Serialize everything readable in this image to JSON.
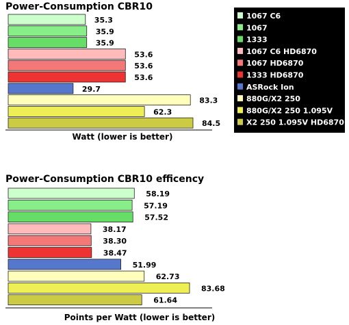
{
  "chart_data": [
    {
      "type": "bar",
      "orientation": "horizontal",
      "title": "Power-Consumption CBR10",
      "xlabel": "Watt (lower is better)",
      "ylabel": "",
      "xlim": [
        0,
        84.5
      ],
      "grid": false,
      "legend_position": "right",
      "categories": [
        "1067 C6",
        "1067",
        "1333",
        "1067 C6 HD6870",
        "1067 HD6870",
        "1333 HD6870",
        "ASRock Ion",
        "880G/X2 250",
        "880G/X2 250 1.095V",
        "X2 250 1.095V HD6870"
      ],
      "values": [
        35.3,
        35.9,
        35.9,
        53.6,
        53.6,
        53.6,
        29.7,
        83.3,
        62.3,
        84.5
      ],
      "value_labels": [
        "35.3",
        "35.9",
        "35.9",
        "53.6",
        "53.6",
        "53.6",
        "29.7",
        "83.3",
        "62.3",
        "84.5"
      ]
    },
    {
      "type": "bar",
      "orientation": "horizontal",
      "title": "Power-Consumption CBR10 efficency",
      "xlabel": "Points per Watt (lower is better)",
      "ylabel": "",
      "xlim": [
        0,
        83.68
      ],
      "grid": false,
      "categories": [
        "1067 C6",
        "1067",
        "1333",
        "1067 C6 HD6870",
        "1067 HD6870",
        "1333 HD6870",
        "ASRock Ion",
        "880G/X2 250",
        "880G/X2 250 1.095V",
        "X2 250 1.095V HD6870"
      ],
      "values": [
        58.19,
        57.19,
        57.52,
        38.17,
        38.3,
        38.47,
        51.99,
        62.73,
        83.68,
        61.64
      ],
      "value_labels": [
        "58.19",
        "57.19",
        "57.52",
        "38.17",
        "38.30",
        "38.47",
        "51.99",
        "62.73",
        "83.68",
        "61.64"
      ]
    }
  ],
  "legend": {
    "items": [
      "1067 C6",
      "1067",
      "1333",
      "1067 C6 HD6870",
      "1067 HD6870",
      "1333 HD6870",
      "ASRock Ion",
      "880G/X2 250",
      "880G/X2 250 1.095V",
      "X2 250 1.095V HD6870"
    ]
  },
  "colors": [
    "#ccffcc",
    "#88ee88",
    "#66dd66",
    "#ffbbbb",
    "#f57878",
    "#ee3333",
    "#5577cc",
    "#ffffbb",
    "#eeee55",
    "#cccc44"
  ]
}
